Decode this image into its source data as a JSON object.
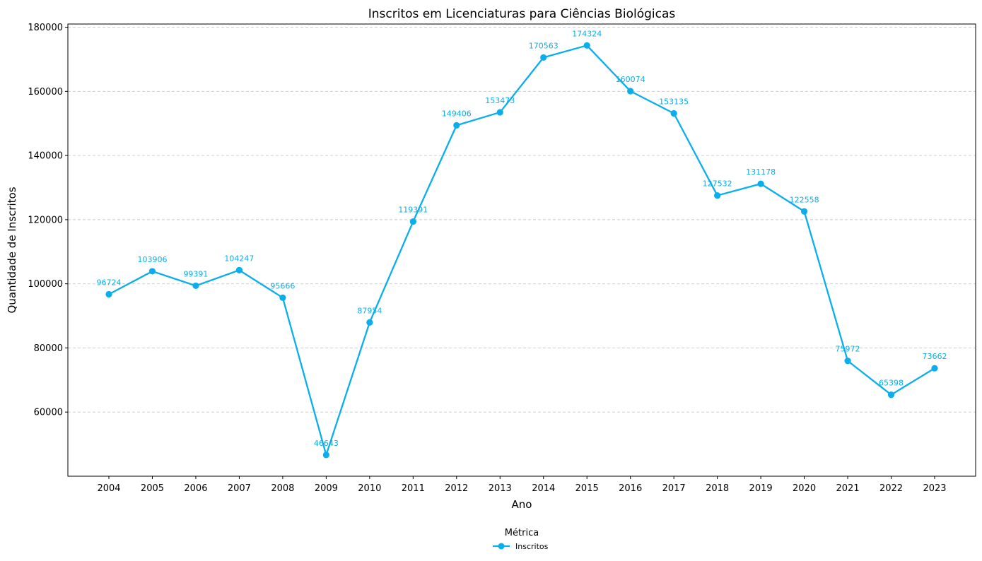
{
  "chart_data": {
    "type": "line",
    "title": "Inscritos em Licenciaturas para Ciências Biológicas",
    "xlabel": "Ano",
    "ylabel": "Quantidade de Inscritos",
    "categories": [
      "2004",
      "2005",
      "2006",
      "2007",
      "2008",
      "2009",
      "2010",
      "2011",
      "2012",
      "2013",
      "2014",
      "2015",
      "2016",
      "2017",
      "2018",
      "2019",
      "2020",
      "2021",
      "2022",
      "2023"
    ],
    "series": [
      {
        "name": "Inscritos",
        "color": "#0aaeec",
        "values": [
          96724,
          103906,
          99391,
          104247,
          95666,
          46643,
          87954,
          119391,
          149406,
          153473,
          170563,
          174324,
          160074,
          153135,
          127532,
          131178,
          122558,
          75972,
          65398,
          73662
        ]
      }
    ],
    "ylim": [
      40000,
      181000
    ],
    "yticks": [
      60000,
      80000,
      100000,
      120000,
      140000,
      160000,
      180000
    ],
    "grid": "y-dashed",
    "legend": {
      "title": "Métrica",
      "placement": "bottom-center"
    }
  }
}
